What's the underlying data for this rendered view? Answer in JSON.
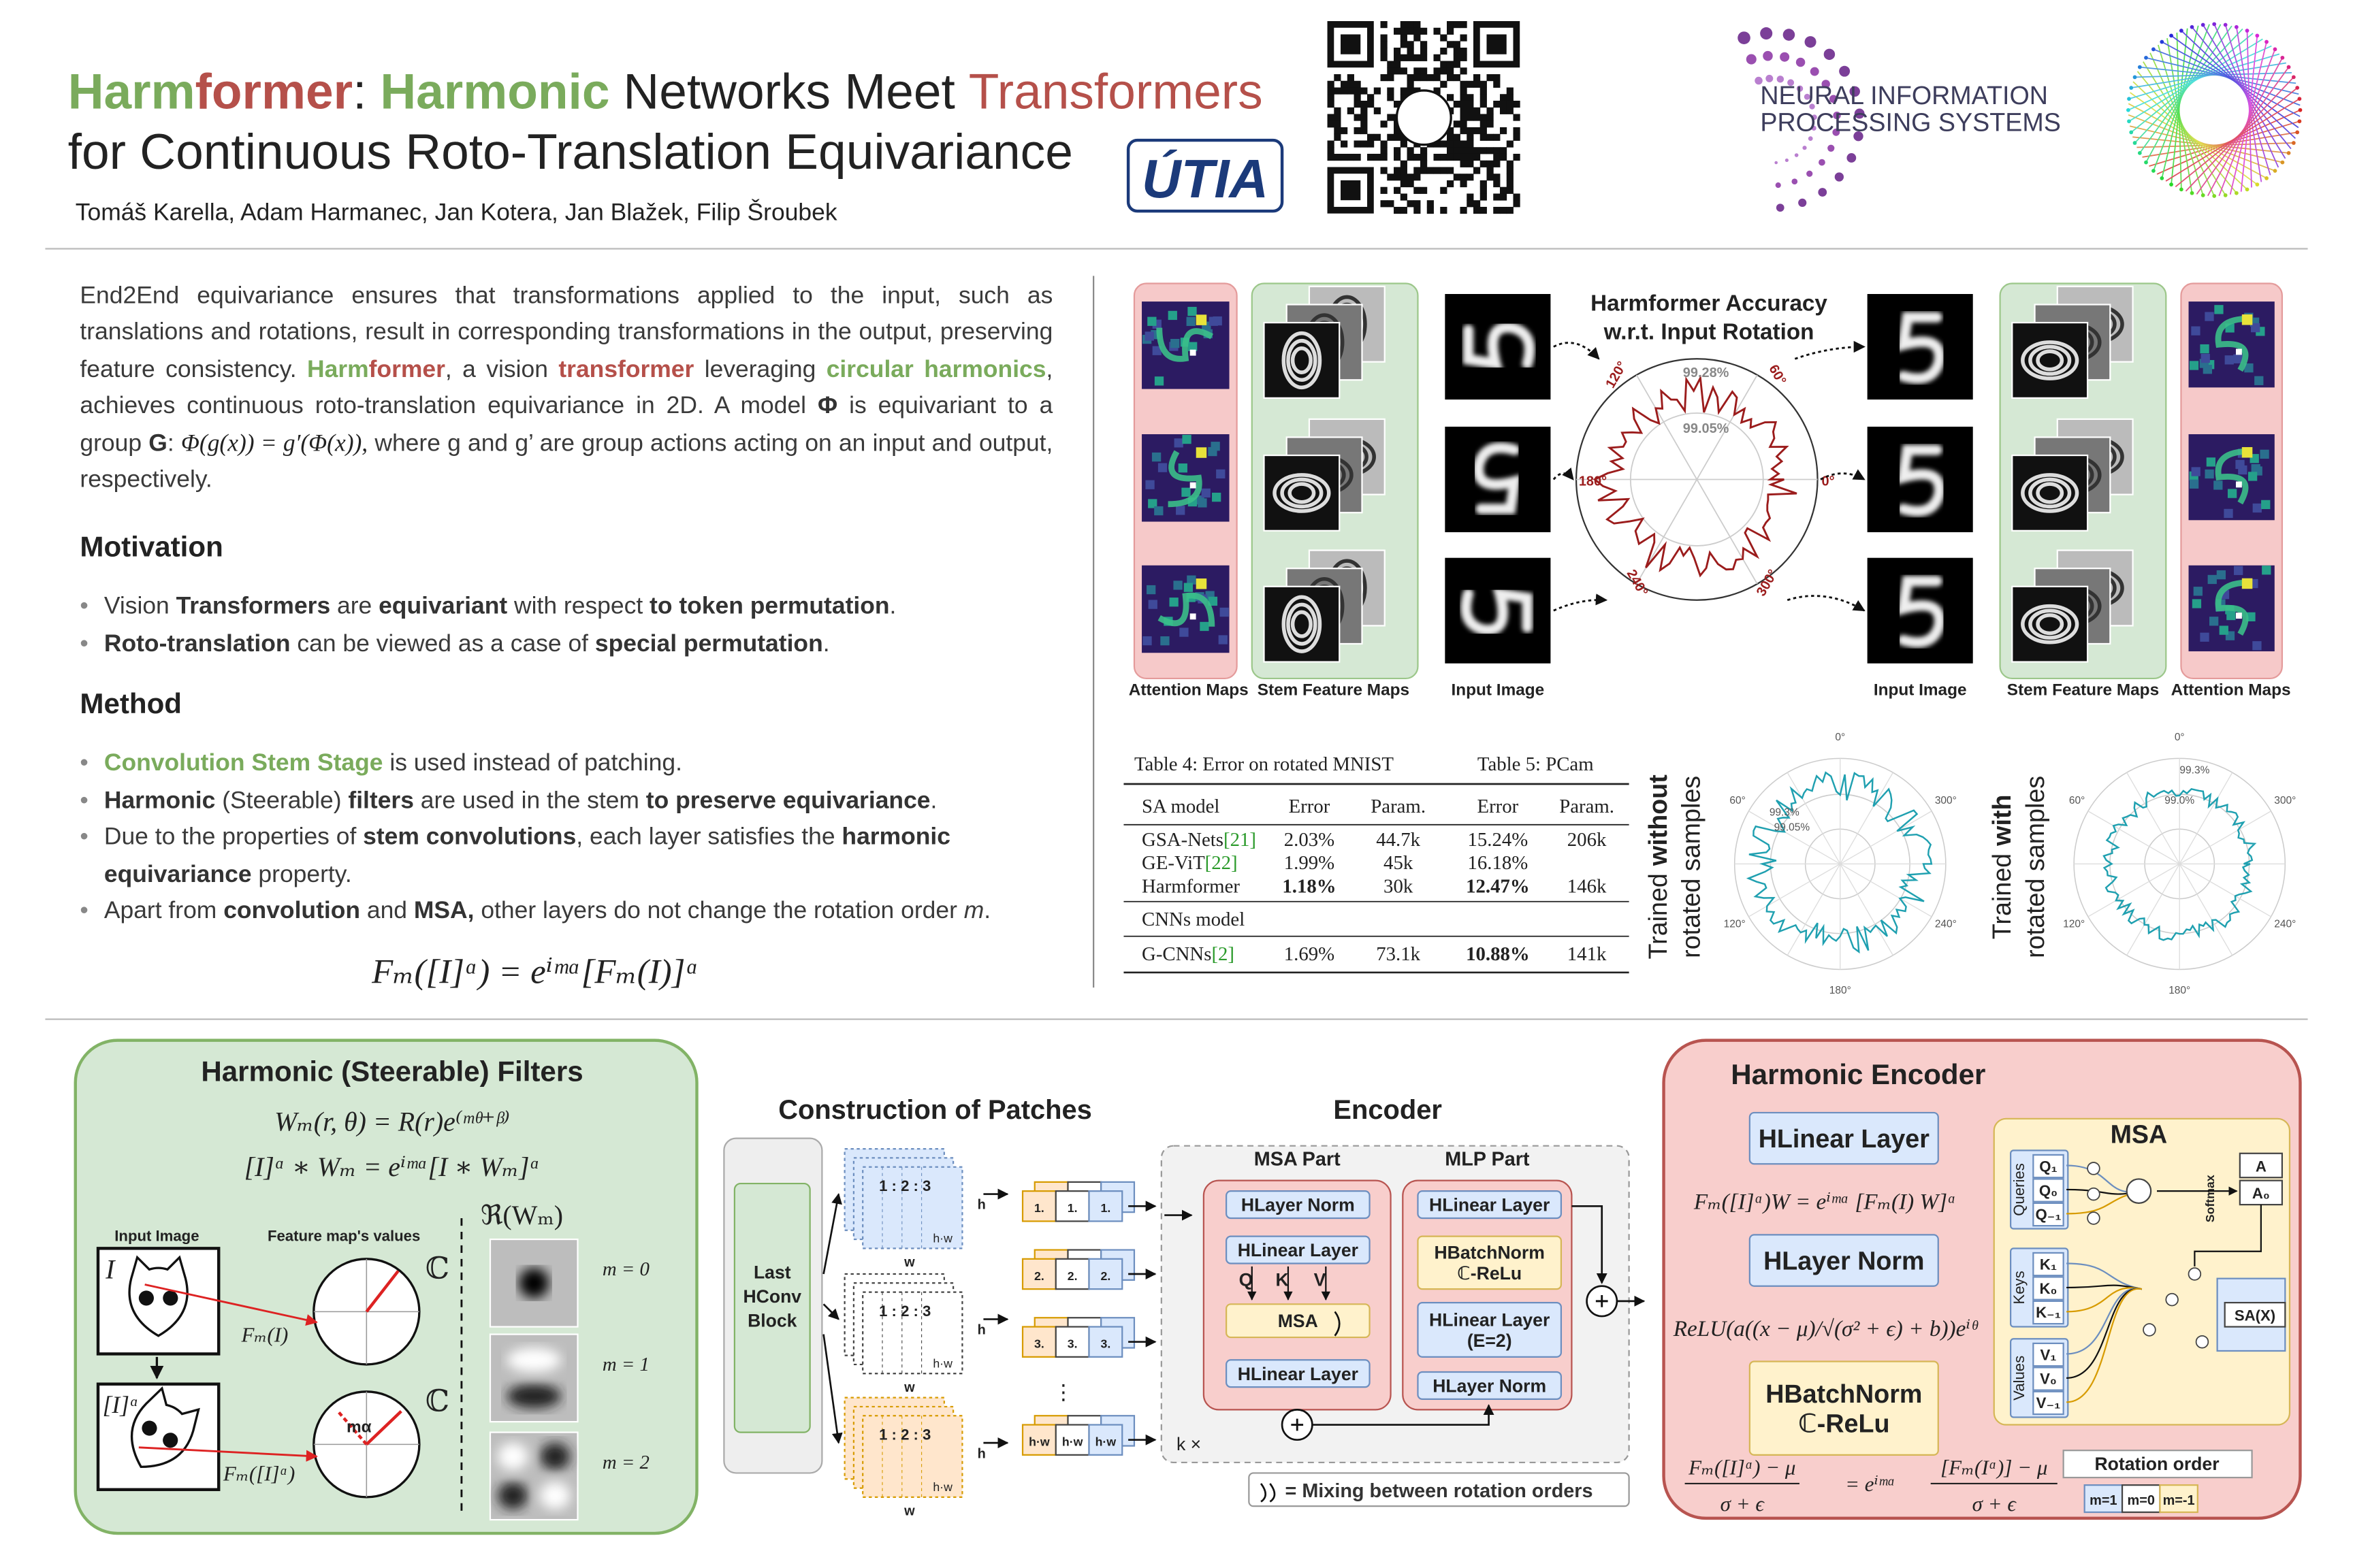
{
  "header": {
    "title_parts": [
      "Harm",
      "former",
      ":",
      "Harmonic",
      "Networks Meet",
      "Transformers"
    ],
    "title_line2": "for Continuous Roto-Translation Equivariance",
    "authors": "Tomáš Karella, Adam Harmanec, Jan Kotera, Jan Blažek, Filip Šroubek",
    "logo_utia": "ÚTIA",
    "logo_neurips": [
      "NEURAL INFORMATION",
      "PROCESSING SYSTEMS"
    ]
  },
  "intro": [
    "End2End equivariance ensures that transformations applied to the input, such as translations and rotations, result in corresponding transformations in the output, preserving feature consistency. ",
    "Harm",
    "former",
    ", a vision ",
    "transformer",
    " leveraging ",
    "circular harmonics",
    ", achieves continuous roto-translation equivariance in 2D. A model ",
    "Φ",
    " is equivariant to a group ",
    "G",
    ": ",
    "Φ(g(x)) = g′(Φ(x)),",
    "  where g and g’ are group actions acting on an input and output, respectively."
  ],
  "motivation": {
    "heading": "Motivation",
    "bullets": [
      [
        "Vision ",
        "Transformers",
        " are ",
        "equivariant",
        " with respect ",
        "to token permutation",
        "."
      ],
      [
        "Roto-translation",
        " can be viewed as a case of ",
        "special permutation",
        "."
      ]
    ]
  },
  "method": {
    "heading": "Method",
    "bullets": [
      [
        "Convolution Stem Stage",
        " is used instead of patching."
      ],
      [
        "Harmonic",
        " (Steerable) ",
        "filters",
        " are used in the stem ",
        "to preserve equivariance",
        "."
      ],
      [
        "Due to the properties of ",
        "stem convolutions",
        ", each layer satisfies the ",
        "harmonic equivariance",
        " property."
      ],
      [
        "Apart from ",
        "convolution",
        " and ",
        "MSA,",
        " other layers do not change the rotation order ",
        "m",
        "."
      ]
    ],
    "formula": "Fₘ([I]ᵅ) = eⁱᵐᵅ[Fₘ(I)]ᵅ"
  },
  "figure": {
    "title": [
      "Harmformer Accuracy",
      "w.r.t. Input Rotation"
    ],
    "polar_labels": [
      "99.28%",
      "99.05%",
      "120°",
      "60°",
      "180°",
      "0°",
      "240°",
      "300°"
    ],
    "captions": [
      "Attention Maps",
      "Stem Feature Maps",
      "Input Image",
      "Input Image",
      "Stem Feature Maps",
      "Attention Maps"
    ]
  },
  "tables": {
    "table4_caption": "Table 4: Error on rotated MNIST",
    "table5_caption": "Table 5: PCam",
    "header": [
      "SA model",
      "Error",
      "Param.",
      "Error",
      "Param."
    ],
    "rows": [
      {
        "name": "GSA-Nets",
        "ref": "[21]",
        "cells": [
          "2.03%",
          "44.7k",
          "15.24%",
          "206k"
        ]
      },
      {
        "name": "GE-ViT",
        "ref": "[22]",
        "cells": [
          "1.99%",
          "45k",
          "16.18%"
        ]
      },
      {
        "name": "Harmformer",
        "cells": [
          "1.18%",
          "30k",
          "12.47%",
          "146k"
        ]
      }
    ],
    "section": "CNNs model",
    "cnn_rows": [
      {
        "name": "G-CNNs",
        "ref": "[2]",
        "cells": [
          "1.69%",
          "73.1k",
          "10.88%",
          "141k"
        ]
      }
    ]
  },
  "polar_small": [
    {
      "label": [
        "Trained",
        "without",
        "rotated samples"
      ],
      "ticks": [
        "0°",
        "60°",
        "300°",
        "120°",
        "240°",
        "180°"
      ],
      "values": [
        "99.3%",
        "99.05%"
      ]
    },
    {
      "label": [
        "Trained",
        "with",
        "rotated samples"
      ],
      "ticks": [
        "0°",
        "60°",
        "300°",
        "120°",
        "240°",
        "180°"
      ],
      "values": [
        "99.3%",
        "99.0%"
      ]
    }
  ],
  "filters": {
    "title": "Harmonic (Steerable) Filters",
    "formulas": [
      "Wₘ(r, θ) = R(r)e⁽ᵐᶿ⁺ᵝ⁾",
      "[I]ᵅ ∗ Wₘ = eⁱᵐᵅ[I ∗ Wₘ]ᵅ"
    ],
    "input_label": "Input Image",
    "feature_label": "Feature map's values",
    "re_label": "ℜ(Wₘ)",
    "image_labels": [
      "I",
      "[I]ᵅ"
    ],
    "complex": [
      "ℂ",
      "ℂ"
    ],
    "map_labels": [
      "Fₘ(I)",
      "Fₘ([I]ᵅ)"
    ],
    "angle": "mα",
    "orders": [
      "m = 0",
      "m = 1",
      "m = 2"
    ]
  },
  "patches": {
    "title": "Construction of Patches",
    "block": [
      "Last",
      "HConv",
      "Block"
    ],
    "grid": "1 : 2 : 3",
    "h": "h",
    "w": "w",
    "hw": "h·w",
    "tokens": [
      "1.",
      "2.",
      "3.",
      "h·w"
    ],
    "dots": "⋮"
  },
  "encoder": {
    "title": "Encoder",
    "msa_part": "MSA Part",
    "mlp_part": "MLP Part",
    "msa_blocks": [
      "HLayer Norm",
      "HLinear Layer",
      "MSA",
      "HLinear Layer"
    ],
    "qkv": [
      "Q",
      "K",
      "V"
    ],
    "mlp_blocks": [
      [
        "HLinear Layer"
      ],
      [
        "HBatchNorm",
        "ℂ-ReLu"
      ],
      [
        "HLinear Layer",
        "(E=2)"
      ],
      [
        "HLayer Norm"
      ]
    ],
    "repeat": "k ×",
    "legend": "= Mixing between rotation orders"
  },
  "harmonic_encoder": {
    "title": "Harmonic Encoder",
    "blocks": [
      [
        "HLinear Layer"
      ],
      [
        "HLayer Norm"
      ],
      [
        "HBatchNorm",
        "ℂ-ReLu"
      ]
    ],
    "formulas": [
      "Fₘ([I]ᵅ)W = eⁱᵐᵅ [Fₘ(I) W]ᵅ",
      "ReLU(a((x − μ)/√(σ² + ϵ) + b))eⁱᶿ"
    ],
    "norm_formula": [
      "Fₘ([I]ᵅ) − μ",
      "σ + ϵ",
      "= eⁱᵐᵅ",
      "[Fₘ(Iᵅ)] − μ",
      "σ + ϵ"
    ],
    "msa": {
      "title": "MSA",
      "queries": "Queries",
      "keys": "Keys",
      "values": "Values",
      "q": [
        "Q₁",
        "Q₀",
        "Q₋₁"
      ],
      "k": [
        "K₁",
        "K₀",
        "K₋₁"
      ],
      "v": [
        "V₁",
        "V₀",
        "V₋₁"
      ],
      "softmax": "Softmax",
      "a": [
        "A",
        "A₀"
      ],
      "sa": "SA(X)"
    },
    "rotation_order": "Rotation order",
    "orders": [
      "m=1",
      "m=0",
      "m=-1"
    ]
  }
}
